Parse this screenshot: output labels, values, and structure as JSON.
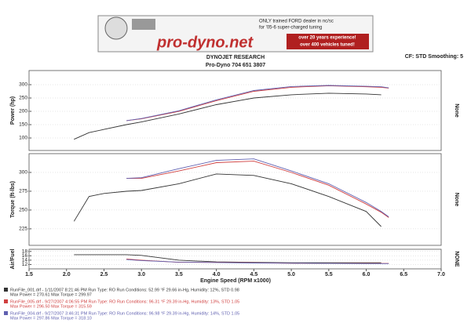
{
  "banner": {
    "line1": "ONLY trained FORD dealer in nc/sc",
    "line2": "for '05-6 super-charged tuning",
    "brand": "pro-dyno.net",
    "line3": "over 20 years experience!",
    "line4": "over 400 vehicles tuned!"
  },
  "header": {
    "title": "DYNOJET RESEARCH",
    "subtitle": "Pro-Dyno 704 651 3807",
    "settings": "CF: STD  Smoothing: 5"
  },
  "chart_data": [
    {
      "type": "line",
      "y_label": "Power (hp)",
      "right_label": "None",
      "x": [
        2.1,
        2.3,
        2.5,
        2.8,
        3.0,
        3.5,
        4.0,
        4.5,
        5.0,
        5.5,
        6.0,
        6.2,
        6.3
      ],
      "xlim": [
        1.5,
        7
      ],
      "ylim": [
        53,
        353
      ],
      "yticks": [
        100,
        150,
        200,
        250,
        300
      ],
      "grid": true,
      "series": [
        {
          "color": "#333333",
          "values": [
            95,
            120,
            132,
            150,
            160,
            190,
            225,
            250,
            262,
            268,
            265,
            262,
            null
          ]
        },
        {
          "color": "#d04040",
          "values": [
            null,
            null,
            null,
            165,
            172,
            200,
            240,
            275,
            290,
            296,
            292,
            290,
            287
          ]
        },
        {
          "color": "#6060b0",
          "values": [
            null,
            null,
            null,
            165,
            173,
            202,
            243,
            278,
            293,
            297,
            294,
            292,
            288
          ]
        }
      ]
    },
    {
      "type": "line",
      "y_label": "Torque (ft-lbs)",
      "right_label": "None",
      "x": [
        2.1,
        2.3,
        2.5,
        2.8,
        3.0,
        3.5,
        4.0,
        4.5,
        5.0,
        5.5,
        6.0,
        6.2,
        6.3
      ],
      "xlim": [
        1.5,
        7
      ],
      "ylim": [
        203,
        325
      ],
      "yticks": [
        225,
        250,
        275,
        300
      ],
      "grid": true,
      "series": [
        {
          "color": "#333333",
          "values": [
            235,
            268,
            272,
            275,
            276,
            285,
            298,
            296,
            285,
            268,
            248,
            228,
            null
          ]
        },
        {
          "color": "#d04040",
          "values": [
            null,
            null,
            null,
            292,
            292,
            302,
            313,
            315,
            300,
            283,
            258,
            247,
            240
          ]
        },
        {
          "color": "#6060b0",
          "values": [
            null,
            null,
            null,
            292,
            293,
            305,
            316,
            318,
            302,
            285,
            260,
            248,
            241
          ]
        }
      ]
    },
    {
      "type": "line",
      "y_label": "Air/Fuel",
      "right_label": "NONE",
      "x": [
        2.1,
        2.3,
        2.5,
        2.8,
        3.0,
        3.5,
        4.0,
        4.5,
        5.0,
        5.5,
        6.0,
        6.2,
        6.3
      ],
      "xlim": [
        1.5,
        7
      ],
      "ylim": [
        10,
        19
      ],
      "yticks": [
        12,
        14,
        16,
        18
      ],
      "grid": true,
      "x_label": "Engine Speed (RPM x1000)",
      "xticks": [
        1.5,
        {
          "value": 2,
          "label": "2.0"
        },
        2.5,
        {
          "value": 3,
          "label": "3.0"
        },
        3.5,
        {
          "value": 4,
          "label": "4.0"
        },
        4.5,
        {
          "value": 5,
          "label": "5.0"
        },
        5.5,
        {
          "value": 6,
          "label": "6.0"
        },
        6.5,
        {
          "value": 7,
          "label": "7.0"
        }
      ],
      "series": [
        {
          "color": "#333333",
          "values": [
            16.5,
            16.5,
            16.5,
            16.5,
            16.2,
            14,
            13.2,
            13,
            12.8,
            12.8,
            12.8,
            12.8,
            null
          ]
        },
        {
          "color": "#d04040",
          "values": [
            null,
            null,
            null,
            14.5,
            14,
            13,
            13,
            12.8,
            12.6,
            12.5,
            12.5,
            12.5,
            12.5
          ]
        },
        {
          "color": "#6060b0",
          "values": [
            null,
            null,
            null,
            14.3,
            13.8,
            13.1,
            12.9,
            12.7,
            12.6,
            12.5,
            12.4,
            12.4,
            12.4
          ]
        }
      ]
    }
  ],
  "legend": [
    {
      "color": "#333333",
      "line1": "RunFile_001.drf - 1/11/2007 8:21:46 PM  Run Type: RO  Run Conditions: 52.99 °F  29.66 in-Hg,  Humidity: 12%,  STD  0.98",
      "line2": "Max Power = 270.61  Max Torque = 299.97"
    },
    {
      "color": "#d04040",
      "line1": "RunFile_005.drf - 9/27/2007 4:06:55 PM  Run Type: RO  Run Conditions: 96.31 °F  29.39 in-Hg,  Humidity: 13%,  STD  1.05",
      "line2": "Max Power = 296.50  Max Torque = 315.59"
    },
    {
      "color": "#6060b0",
      "line1": "RunFile_004.drf - 9/27/2007 3:46:31 PM  Run Type: RO  Run Conditions: 96.98 °F  29.39 in-Hg,  Humidity: 14%,  STD  1.05",
      "line2": "Max Power = 297.86  Max Torque = 318.10"
    }
  ]
}
